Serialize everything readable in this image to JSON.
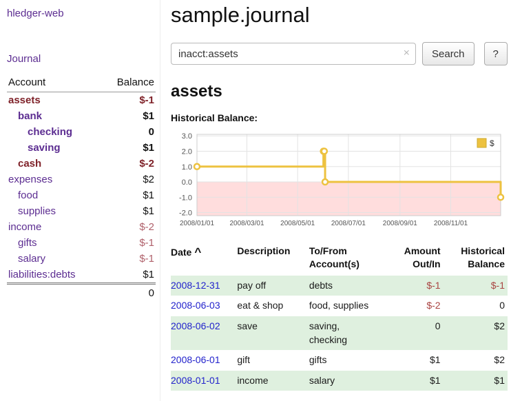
{
  "sidebar": {
    "app_title": "hledger-web",
    "journal_link": "Journal",
    "accounts": {
      "account_header": "Account",
      "balance_header": "Balance",
      "rows": [
        {
          "name": "assets",
          "balance": "$-1",
          "indent": 0,
          "name_style": "neg-strong",
          "balance_style": "neg-strong"
        },
        {
          "name": "bank",
          "balance": "$1",
          "indent": 1,
          "name_style": "strong",
          "balance_style": "strong"
        },
        {
          "name": "checking",
          "balance": "0",
          "indent": 2,
          "name_style": "strong",
          "balance_style": "strong"
        },
        {
          "name": "saving",
          "balance": "$1",
          "indent": 2,
          "name_style": "strong",
          "balance_style": "strong"
        },
        {
          "name": "cash",
          "balance": "$-2",
          "indent": 1,
          "name_style": "neg-strong",
          "balance_style": "neg-strong"
        },
        {
          "name": "expenses",
          "balance": "$2",
          "indent": 0,
          "name_style": "normal",
          "balance_style": "normal"
        },
        {
          "name": "food",
          "balance": "$1",
          "indent": 1,
          "name_style": "normal",
          "balance_style": "normal"
        },
        {
          "name": "supplies",
          "balance": "$1",
          "indent": 1,
          "name_style": "normal",
          "balance_style": "normal"
        },
        {
          "name": "income",
          "balance": "$-2",
          "indent": 0,
          "name_style": "normal",
          "balance_style": "neg"
        },
        {
          "name": "gifts",
          "balance": "$-1",
          "indent": 1,
          "name_style": "normal",
          "balance_style": "neg"
        },
        {
          "name": "salary",
          "balance": "$-1",
          "indent": 1,
          "name_style": "normal",
          "balance_style": "neg"
        },
        {
          "name": "liabilities:debts",
          "balance": "$1",
          "indent": 0,
          "name_style": "normal",
          "balance_style": "normal"
        }
      ],
      "total": "0"
    }
  },
  "main": {
    "title": "sample.journal",
    "search": {
      "value": "inacct:assets",
      "clear_icon": "×",
      "search_button": "Search",
      "help_button": "?"
    },
    "account_heading": "assets",
    "chart_label": "Historical Balance:",
    "register": {
      "headers": {
        "date": "Date",
        "sort_indicator": "^",
        "description": "Description",
        "accounts": "To/From\nAccount(s)",
        "amount": "Amount\nOut/In",
        "balance": "Historical\nBalance"
      },
      "rows": [
        {
          "date": "2008-12-31",
          "description": "pay off",
          "accounts": "debts",
          "amount": "$-1",
          "balance": "$-1"
        },
        {
          "date": "2008-06-03",
          "description": "eat & shop",
          "accounts": "food, supplies",
          "amount": "$-2",
          "balance": "0"
        },
        {
          "date": "2008-06-02",
          "description": "save",
          "accounts": "saving, checking",
          "amount": "0",
          "balance": "$2"
        },
        {
          "date": "2008-06-01",
          "description": "gift",
          "accounts": "gifts",
          "amount": "$1",
          "balance": "$2"
        },
        {
          "date": "2008-01-01",
          "description": "income",
          "accounts": "salary",
          "amount": "$1",
          "balance": "$1"
        }
      ]
    }
  },
  "chart_data": {
    "type": "line",
    "step": true,
    "title": "Historical Balance:",
    "series": [
      {
        "name": "$",
        "color": "#edc240",
        "points": [
          [
            "2008-01-01",
            1
          ],
          [
            "2008-06-01",
            2
          ],
          [
            "2008-06-02",
            2
          ],
          [
            "2008-06-03",
            0
          ],
          [
            "2008-12-31",
            -1
          ]
        ]
      }
    ],
    "x_ticks": [
      "2008/01/01",
      "2008/03/01",
      "2008/05/01",
      "2008/07/01",
      "2008/09/01",
      "2008/11/01"
    ],
    "y_ticks": [
      "3.0",
      "2.0",
      "1.0",
      "0.0",
      "-1.0",
      "-2.0"
    ],
    "ylim": [
      -2.2,
      3.1
    ],
    "x_range": [
      "2008-01-01",
      "2008-12-31"
    ],
    "negative_region_color": "#ffdddd",
    "legend_position": "top-right",
    "grid": true
  },
  "colors": {
    "link_purple": "#5c2d91",
    "negative_strong": "#7f2229",
    "negative_muted": "#b0616b",
    "negative_table": "#a94442",
    "date_link_blue": "#2222cc",
    "row_stripe_green": "#dff0df",
    "chart_line": "#edc240"
  }
}
